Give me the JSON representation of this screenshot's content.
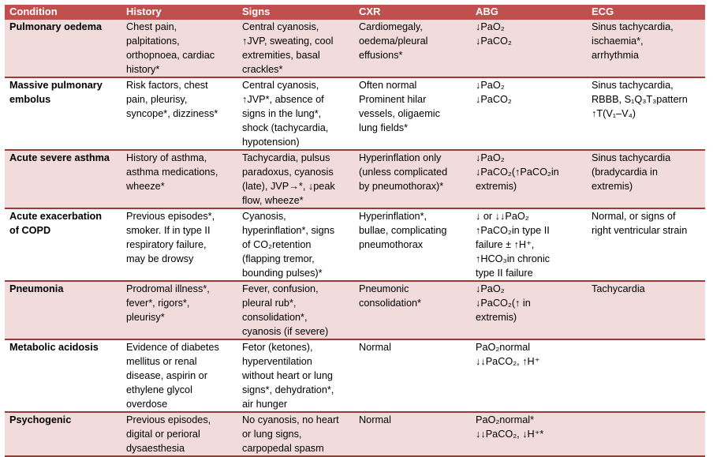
{
  "columns": [
    "Condition",
    "History",
    "Signs",
    "CXR",
    "ABG",
    "ECG"
  ],
  "rows": [
    {
      "condition": "Pulmonary oedema",
      "history": "Chest pain,\npalpitations,\northopnoea, cardiac\nhistory*",
      "signs": "Central cyanosis,\n↑JVP, sweating, cool\nextremities, basal\ncrackles*",
      "cxr": "Cardiomegaly,\noedema/pleural\neffusions*",
      "abg": "↓PaO₂\n↓PaCO₂",
      "ecg": "Sinus tachycardia,\nischaemia*,\narrhythmia"
    },
    {
      "condition": "Massive pulmonary\nembolus",
      "history": "Risk factors, chest\npain, pleurisy,\nsyncope*, dizziness*",
      "signs": "Central cyanosis,\n↑JVP*, absence of\nsigns in the lung*,\nshock (tachycardia,\nhypotension)",
      "cxr": "Often normal\nProminent hilar\nvessels, oligaemic\nlung fields*",
      "abg": "↓PaO₂\n↓PaCO₂",
      "ecg": "Sinus tachycardia,\nRBBB, S₁Q₃T₃pattern\n↑T(V₁–V₄)"
    },
    {
      "condition": "Acute severe asthma",
      "history": "History of asthma,\nasthma medications,\nwheeze*",
      "signs": "Tachycardia, pulsus\nparadoxus, cyanosis\n(late), JVP→*, ↓peak\nflow, wheeze*",
      "cxr": "Hyperinflation only\n(unless complicated\nby pneumothorax)*",
      "abg": "↓PaO₂\n↓PaCO₂(↑PaCO₂in\nextremis)",
      "ecg": "Sinus tachycardia\n(bradycardia in\nextremis)"
    },
    {
      "condition": "Acute exacerbation\nof COPD",
      "history": "Previous episodes*,\nsmoker. If in type II\nrespiratory failure,\nmay be drowsy",
      "signs": "Cyanosis,\nhyperinflation*, signs\nof CO₂retention\n(flapping tremor,\nbounding pulses)*",
      "cxr": "Hyperinflation*,\nbullae, complicating\npneumothorax",
      "abg": "↓ or ↓↓PaO₂\n↑PaCO₂in type II\nfailure ± ↑H⁺,\n↑HCO₃in chronic\ntype II failure",
      "ecg": "Normal, or signs of\nright ventricular strain"
    },
    {
      "condition": "Pneumonia",
      "history": "Prodromal illness*,\nfever*, rigors*,\npleurisy*",
      "signs": "Fever, confusion,\npleural rub*,\nconsolidation*,\ncyanosis (if severe)",
      "cxr": "Pneumonic\nconsolidation*",
      "abg": "↓PaO₂\n↓PaCO₂(↑ in\nextremis)",
      "ecg": "Tachycardia"
    },
    {
      "condition": "Metabolic acidosis",
      "history": "Evidence of diabetes\nmellitus or renal\ndisease, aspirin or\nethylene glycol\noverdose",
      "signs": "Fetor (ketones),\nhyperventilation\nwithout heart or lung\nsigns*, dehydration*,\nair hunger",
      "cxr": "Normal",
      "abg": "PaO₂normal\n↓↓PaCO₂, ↑H⁺",
      "ecg": ""
    },
    {
      "condition": "Psychogenic",
      "history": "Previous episodes,\ndigital or perioral\ndysaesthesia",
      "signs": "No cyanosis, no heart\nor lung signs,\ncarpopedal spasm",
      "cxr": "Normal",
      "abg": "PaO₂normal*\n↓↓PaCO₂, ↓H⁺*",
      "ecg": ""
    }
  ]
}
